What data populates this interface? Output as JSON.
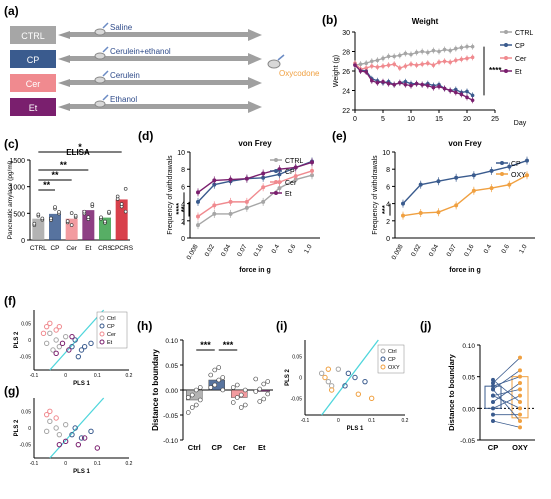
{
  "panel_labels": {
    "a": "(a)",
    "b": "(b)",
    "c": "(c)",
    "d": "(d)",
    "e": "(e)",
    "f": "(f)",
    "g": "(g)",
    "h": "(h)",
    "i": "(i)",
    "j": "(j)"
  },
  "colors": {
    "ctrl": "#a6a6a6",
    "cp": "#3a5b8e",
    "cer": "#f08a8f",
    "et": "#7a1f6e",
    "oxy": "#f0a040",
    "boundary": "#4fd6dc",
    "crs": "#3aa04a",
    "cpcrs": "#d11f2b"
  },
  "schematic": {
    "groups": [
      {
        "label": "CTRL",
        "color": "#a6a6a6",
        "treatment": "Saline"
      },
      {
        "label": "CP",
        "color": "#3a5b8e",
        "treatment": "Cerulein+ethanol"
      },
      {
        "label": "Cer",
        "color": "#f08a8f",
        "treatment": "Cerulein"
      },
      {
        "label": "Et",
        "color": "#7a1f6e",
        "treatment": "Ethanol"
      }
    ],
    "drug": "Oxycodone"
  },
  "chart_data": [
    {
      "panel": "b",
      "type": "line",
      "title": "Weight",
      "xlabel": "Day",
      "ylabel": "Weight (g)",
      "xlim": [
        0,
        25
      ],
      "ylim": [
        22,
        30
      ],
      "xticks": [
        0,
        5,
        10,
        15,
        20,
        25
      ],
      "yticks": [
        22,
        24,
        26,
        28,
        30
      ],
      "x": [
        0,
        1,
        2,
        3,
        4,
        5,
        6,
        7,
        8,
        9,
        10,
        11,
        12,
        13,
        14,
        15,
        16,
        17,
        18,
        19,
        20,
        21
      ],
      "series": [
        {
          "name": "CTRL",
          "values": [
            26.6,
            26.7,
            26.8,
            27.0,
            27.1,
            27.3,
            27.5,
            27.5,
            27.6,
            27.8,
            27.7,
            27.9,
            28.0,
            27.9,
            28.1,
            28.0,
            28.2,
            28.1,
            28.3,
            28.4,
            28.5,
            28.5
          ]
        },
        {
          "name": "CP",
          "values": [
            26.7,
            26.1,
            26.0,
            25.2,
            25.0,
            24.8,
            24.9,
            24.6,
            24.8,
            24.9,
            24.7,
            24.7,
            24.6,
            24.7,
            24.5,
            24.6,
            24.2,
            24.0,
            24.1,
            23.8,
            23.9,
            23.5
          ]
        },
        {
          "name": "Cer",
          "values": [
            26.8,
            26.2,
            26.3,
            26.5,
            26.4,
            26.5,
            26.6,
            26.7,
            26.3,
            26.5,
            26.7,
            26.6,
            26.7,
            26.8,
            26.6,
            26.9,
            27.0,
            26.9,
            27.1,
            27.2,
            27.3,
            27.4
          ]
        },
        {
          "name": "Et",
          "values": [
            26.6,
            26.0,
            25.9,
            25.0,
            24.8,
            24.9,
            24.7,
            24.6,
            24.8,
            24.6,
            24.5,
            24.7,
            24.6,
            24.5,
            24.3,
            24.4,
            24.2,
            24.0,
            23.8,
            23.6,
            23.3,
            23.0
          ]
        }
      ],
      "annotations": [
        "****"
      ]
    },
    {
      "panel": "c",
      "type": "bar",
      "title": "ELISA",
      "ylabel": "Pancreatic amylase (pg/ml)",
      "categories": [
        "CTRL",
        "CP",
        "Cer",
        "Et",
        "CRS",
        "CPCRS"
      ],
      "values": [
        400,
        490,
        400,
        560,
        420,
        760
      ],
      "ylim": [
        0,
        1500
      ],
      "yticks": [
        0,
        500,
        1000,
        1500
      ],
      "annotations": [
        "**",
        "*",
        "**",
        "**",
        "*"
      ]
    },
    {
      "panel": "d",
      "type": "line",
      "title": "von Frey",
      "xlabel": "force in g",
      "ylabel": "Frequency of withdrawals",
      "categories": [
        "0.008",
        "0.02",
        "0.04",
        "0.07",
        "0.16",
        "0.4",
        "0.6",
        "1.0"
      ],
      "ylim": [
        0,
        10
      ],
      "yticks": [
        0,
        2,
        4,
        6,
        8,
        10
      ],
      "series": [
        {
          "name": "CTRL",
          "values": [
            1.5,
            2.8,
            2.8,
            3.5,
            4.2,
            5.8,
            6.8,
            7.3
          ]
        },
        {
          "name": "CP",
          "values": [
            4.2,
            6.2,
            6.6,
            6.9,
            7.0,
            7.4,
            8.2,
            8.9
          ]
        },
        {
          "name": "Cer",
          "values": [
            2.5,
            3.8,
            4.2,
            4.2,
            5.9,
            6.5,
            7.2,
            7.8
          ]
        },
        {
          "name": "Et",
          "values": [
            5.3,
            6.7,
            6.8,
            6.9,
            7.5,
            8.0,
            8.2,
            8.8
          ]
        }
      ],
      "annotations": [
        "****",
        "**"
      ]
    },
    {
      "panel": "e",
      "type": "line",
      "title": "von Frey",
      "xlabel": "force in g",
      "ylabel": "Frequency of withdrawals",
      "categories": [
        "0.008",
        "0.02",
        "0.04",
        "0.07",
        "0.16",
        "0.4",
        "0.6",
        "1.0"
      ],
      "ylim": [
        0,
        10
      ],
      "yticks": [
        0,
        2,
        4,
        6,
        8,
        10
      ],
      "series": [
        {
          "name": "CP",
          "values": [
            4.0,
            6.2,
            6.6,
            7.0,
            7.3,
            7.8,
            8.3,
            9.0
          ]
        },
        {
          "name": "OXY",
          "values": [
            2.6,
            2.9,
            3.0,
            3.8,
            5.5,
            5.8,
            6.2,
            7.3
          ]
        }
      ],
      "annotations": [
        "***"
      ]
    },
    {
      "panel": "f",
      "type": "scatter",
      "xlabel": "PLS 1",
      "ylabel": "PLS 2",
      "xlim": [
        -0.1,
        0.2
      ],
      "ylim": [
        -0.09,
        0.09
      ],
      "xticks": [
        -0.1,
        0,
        0.1,
        0.2
      ],
      "yticks": [
        -0.05,
        0,
        0.05
      ],
      "series": [
        {
          "name": "Ctrl",
          "points": [
            [
              -0.05,
              0.02
            ],
            [
              -0.03,
              0.0
            ],
            [
              -0.06,
              -0.01
            ],
            [
              0.0,
              0.01
            ],
            [
              -0.02,
              -0.02
            ],
            [
              -0.04,
              -0.03
            ]
          ]
        },
        {
          "name": "CP",
          "points": [
            [
              0.02,
              -0.02
            ],
            [
              0.05,
              -0.03
            ],
            [
              0.08,
              -0.01
            ],
            [
              0.03,
              0.0
            ],
            [
              0.06,
              -0.02
            ],
            [
              0.04,
              -0.05
            ]
          ]
        },
        {
          "name": "Cer",
          "points": [
            [
              -0.06,
              0.04
            ],
            [
              -0.03,
              0.03
            ],
            [
              -0.05,
              0.05
            ],
            [
              -0.02,
              0.04
            ],
            [
              -0.07,
              0.02
            ]
          ]
        },
        {
          "name": "Et",
          "points": [
            [
              -0.01,
              -0.01
            ],
            [
              0.02,
              0.01
            ],
            [
              -0.03,
              -0.04
            ],
            [
              0.01,
              -0.03
            ]
          ]
        }
      ]
    },
    {
      "panel": "g",
      "type": "scatter",
      "xlabel": "PLS 1",
      "ylabel": "PLS 2",
      "xlim": [
        -0.1,
        0.2
      ],
      "ylim": [
        -0.09,
        0.09
      ],
      "xticks": [
        -0.1,
        0,
        0.1,
        0.2
      ],
      "yticks": [
        -0.05,
        0,
        0.05
      ],
      "series": [
        {
          "name": "Ctrl",
          "points": [
            [
              -0.05,
              0.02
            ],
            [
              -0.03,
              0.0
            ],
            [
              -0.06,
              -0.01
            ],
            [
              0.0,
              0.01
            ],
            [
              -0.02,
              -0.02
            ]
          ]
        },
        {
          "name": "CP",
          "points": [
            [
              0.02,
              -0.02
            ],
            [
              0.05,
              -0.03
            ],
            [
              0.08,
              -0.01
            ],
            [
              0.03,
              0.0
            ]
          ]
        },
        {
          "name": "Cer",
          "points": [
            [
              -0.06,
              0.04
            ],
            [
              -0.03,
              0.03
            ],
            [
              -0.05,
              0.05
            ]
          ]
        },
        {
          "name": "Et",
          "points": [
            [
              0.0,
              -0.04
            ],
            [
              0.04,
              -0.05
            ],
            [
              0.06,
              -0.03
            ],
            [
              -0.02,
              -0.05
            ],
            [
              0.1,
              -0.06
            ]
          ]
        }
      ]
    },
    {
      "panel": "h",
      "type": "bar",
      "ylabel": "Distance to boundary",
      "categories": [
        "Ctrl",
        "CP",
        "Cer",
        "Et"
      ],
      "values": [
        -0.02,
        0.02,
        -0.015,
        -0.003
      ],
      "ylim": [
        -0.1,
        0.1
      ],
      "yticks": [
        -0.1,
        -0.05,
        0.0,
        0.05,
        0.1
      ],
      "annotations": [
        "***",
        "***"
      ]
    },
    {
      "panel": "i",
      "type": "scatter",
      "xlabel": "PLS 1",
      "ylabel": "PLS 2",
      "xlim": [
        -0.1,
        0.2
      ],
      "ylim": [
        -0.09,
        0.09
      ],
      "xticks": [
        -0.1,
        0,
        0.1,
        0.2
      ],
      "yticks": [
        -0.05,
        0,
        0.05
      ],
      "series": [
        {
          "name": "Ctrl",
          "points": [
            [
              -0.05,
              0.01
            ],
            [
              -0.03,
              -0.01
            ],
            [
              0.0,
              0.02
            ],
            [
              -0.02,
              -0.02
            ]
          ]
        },
        {
          "name": "CP",
          "points": [
            [
              0.02,
              -0.02
            ],
            [
              0.05,
              0.0
            ],
            [
              0.08,
              -0.01
            ],
            [
              0.03,
              0.01
            ]
          ]
        },
        {
          "name": "OXY",
          "points": [
            [
              -0.04,
              0.0
            ],
            [
              -0.02,
              -0.03
            ],
            [
              0.06,
              -0.04
            ],
            [
              0.1,
              -0.05
            ],
            [
              -0.03,
              0.02
            ]
          ]
        }
      ]
    },
    {
      "panel": "j",
      "type": "scatter",
      "ylabel": "Distance to boundary",
      "categories": [
        "CP",
        "OXY"
      ],
      "ylim": [
        -0.05,
        0.1
      ],
      "yticks": [
        -0.05,
        0.0,
        0.05,
        0.1
      ],
      "pairs": [
        [
          0.04,
          0.08
        ],
        [
          0.03,
          0.06
        ],
        [
          0.035,
          0.05
        ],
        [
          0.02,
          0.03
        ],
        [
          0.01,
          0.04
        ],
        [
          0.0,
          0.02
        ],
        [
          0.045,
          0.01
        ],
        [
          -0.01,
          -0.01
        ],
        [
          -0.02,
          -0.03
        ],
        [
          0.02,
          0.0
        ],
        [
          0.03,
          -0.02
        ]
      ]
    }
  ]
}
